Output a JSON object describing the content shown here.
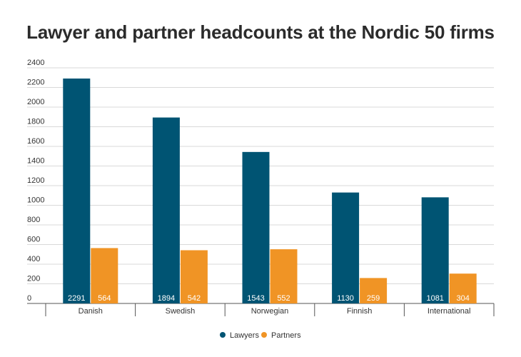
{
  "chart_data": {
    "type": "bar",
    "title": "Lawyer and partner headcounts at the Nordic 50 firms",
    "categories": [
      "Danish",
      "Swedish",
      "Norwegian",
      "Finnish",
      "International"
    ],
    "series": [
      {
        "name": "Lawyers",
        "values": [
          2291,
          1894,
          1543,
          1130,
          1081
        ],
        "color": "#005473"
      },
      {
        "name": "Partners",
        "values": [
          564,
          542,
          552,
          259,
          304
        ],
        "color": "#f09425"
      }
    ],
    "ylim": [
      0,
      2400
    ],
    "yticks": [
      "0",
      "200",
      "400",
      "600",
      "800",
      "1000",
      "1200",
      "1400",
      "1600",
      "1800",
      "2000",
      "2200",
      "2400"
    ],
    "grid": true,
    "legend": "bottom-center"
  }
}
